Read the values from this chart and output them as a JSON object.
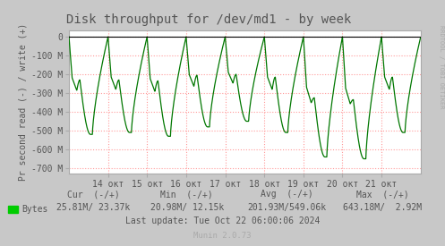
{
  "title": "Disk throughput for /dev/md1 - by week",
  "ylabel": "Pr second read (-) / write (+)",
  "plot_bg_color": "#ffffff",
  "grid_color": "#ff9999",
  "line_color": "#00ee00",
  "line_edge_color": "#007700",
  "ylim": [
    -728,
    32
  ],
  "yticks": [
    0,
    -100,
    -200,
    -300,
    -400,
    -500,
    -600,
    -700
  ],
  "ytick_labels": [
    "0",
    "-100 M",
    "-200 M",
    "-300 M",
    "-400 M",
    "-500 M",
    "-600 M",
    "-700 M"
  ],
  "legend_label": "Bytes",
  "legend_color": "#00cc00",
  "cur_text": "Cur  (-/+)",
  "cur_val": "25.81M/ 23.37k",
  "min_text": "Min  (-/+)",
  "min_val": "20.98M/ 12.15k",
  "avg_text": "Avg  (-/+)",
  "avg_val": "201.93M/549.06k",
  "max_text": "Max  (-/+)",
  "max_val": "643.18M/  2.92M",
  "last_update": "Last update: Tue Oct 22 06:00:06 2024",
  "munin_version": "Munin 2.0.73",
  "rrdtool_text": "RRDTOOL / TOBI OETIKER",
  "title_color": "#555555",
  "tick_color": "#555555",
  "outer_bg": "#c8c8c8",
  "amplitudes": [
    -520,
    -510,
    -530,
    -480,
    -450,
    -510,
    -640,
    -650,
    -510
  ],
  "notch_depths": [
    -230,
    -230,
    -235,
    -205,
    -200,
    -215,
    -325,
    -335,
    -215
  ],
  "notch_positions": [
    0.35,
    0.35,
    0.35,
    0.35,
    0.35,
    0.35,
    0.35,
    0.35,
    0.35
  ]
}
